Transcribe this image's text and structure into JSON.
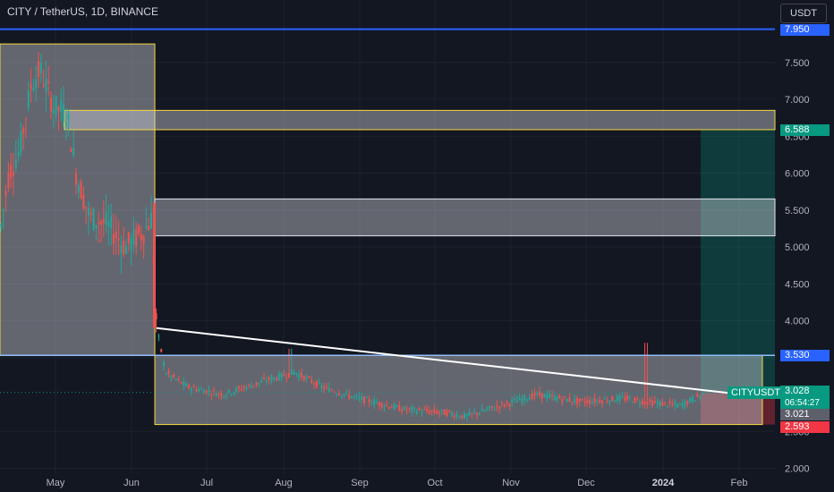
{
  "header": {
    "title": "CITY / TetherUS, 1D, BINANCE",
    "currency_button": "USDT"
  },
  "price_axis": {
    "ticks": [
      "7.500",
      "7.000",
      "6.500",
      "6.000",
      "5.500",
      "5.000",
      "4.500",
      "4.000",
      "3.500",
      "2.500",
      "2.000"
    ]
  },
  "time_axis": {
    "ticks": [
      "May",
      "Jun",
      "Jul",
      "Aug",
      "Sep",
      "Oct",
      "Nov",
      "Dec",
      "2024",
      "Feb"
    ]
  },
  "price_tags": {
    "resistance": "7.950",
    "target": "6.588",
    "support": "3.530",
    "last": "3.028",
    "countdown": "06:54:27",
    "entry": "3.021",
    "stop": "2.593"
  },
  "symbol_badge": "CITYUSDT",
  "colors": {
    "background": "#131722",
    "up": "#26a69a",
    "down": "#ef5350",
    "accent_blue": "#2962ff",
    "target_green": "#089981",
    "stop_red": "#f23645",
    "zone_yellow": "#f5d742"
  },
  "chart_data": {
    "type": "candlestick",
    "symbol": "CITYUSDT",
    "interval": "1D",
    "exchange": "BINANCE",
    "ylim": [
      1.9,
      8.1
    ],
    "price_levels": {
      "horizontal_resistance": 7.95,
      "horizontal_support": 3.53,
      "last_price": 3.028
    },
    "zones": [
      {
        "from": "Apr",
        "to": "Jun",
        "low": 3.53,
        "high": 7.75
      },
      {
        "from": "May",
        "to": "Feb",
        "low": 6.588,
        "high": 6.85
      },
      {
        "from": "Jun",
        "to": "Feb",
        "low": 5.15,
        "high": 5.65
      },
      {
        "from": "Jun",
        "to": "Feb",
        "low": 2.593,
        "high": 3.53
      }
    ],
    "trendline": {
      "from": {
        "date": "Jun",
        "price": 3.9
      },
      "to": {
        "date": "Feb",
        "price": 2.95
      }
    },
    "position": {
      "entry": 3.021,
      "target": 6.588,
      "stop": 2.593
    }
  }
}
